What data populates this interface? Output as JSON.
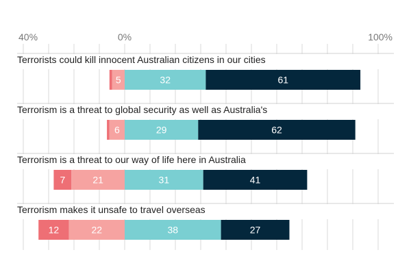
{
  "chart_data": {
    "type": "bar",
    "orientation": "horizontal",
    "stacked": "diverging",
    "axis": {
      "xlim": [
        -40,
        100
      ],
      "ticks": [
        -40,
        -30,
        -20,
        -10,
        0,
        10,
        20,
        30,
        40,
        50,
        60,
        70,
        80,
        90,
        100
      ],
      "tick_labels": [
        {
          "value": -40,
          "label": "40%"
        },
        {
          "value": 0,
          "label": "0%"
        },
        {
          "value": 100,
          "label": "100%"
        }
      ],
      "grid": true
    },
    "series": [
      {
        "color": "#ee6f75"
      },
      {
        "color": "#f6a3a1"
      },
      {
        "color": "#7acfd2"
      },
      {
        "color": "#04273c"
      }
    ],
    "categories": [
      "Terrorists could kill innocent Australian citizens in our cities",
      "Terrorism is a threat to global security as well as Australia's",
      "Terrorism is a threat to our way of life here in Australia",
      "Terrorism makes it unsafe to travel overseas"
    ],
    "rows": [
      {
        "values": [
          1,
          5,
          32,
          61
        ],
        "labels": [
          "",
          "5",
          "32",
          "61"
        ]
      },
      {
        "values": [
          1,
          6,
          29,
          62
        ],
        "labels": [
          "",
          "6",
          "29",
          "62"
        ]
      },
      {
        "values": [
          7,
          21,
          31,
          41
        ],
        "labels": [
          "7",
          "21",
          "31",
          "41"
        ]
      },
      {
        "values": [
          12,
          22,
          38,
          27
        ],
        "labels": [
          "12",
          "22",
          "38",
          "27"
        ]
      }
    ]
  }
}
